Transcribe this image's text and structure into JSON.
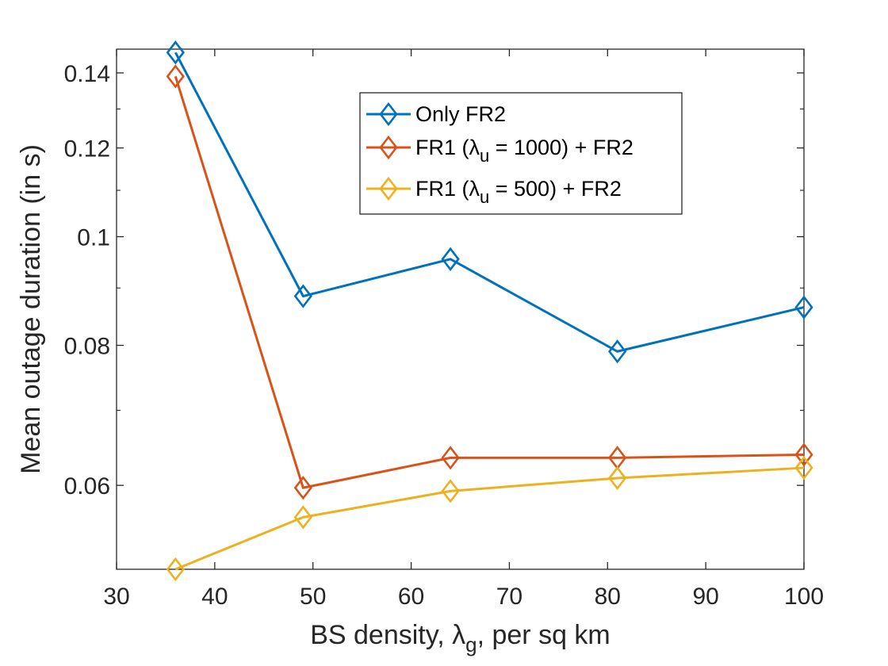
{
  "chart_data": {
    "type": "line",
    "xlabel": "",
    "ylabel": "Mean outage duration (in s)",
    "xlabel_parts": {
      "prefix": "BS density, ",
      "symbol": "λ",
      "subscript": "g",
      "suffix": ", per sq km"
    },
    "xlim": [
      30,
      100
    ],
    "ylim": [
      0.0505,
      0.147
    ],
    "yscale": "log",
    "grid": false,
    "legend_placement": "top-center",
    "x_ticks": [
      30,
      40,
      50,
      60,
      70,
      80,
      90,
      100
    ],
    "y_ticks": [
      0.06,
      0.08,
      0.1,
      0.12,
      0.14
    ],
    "x_tick_labels": [
      "30",
      "40",
      "50",
      "60",
      "70",
      "80",
      "90",
      "100"
    ],
    "y_tick_labels": [
      "0.06",
      "0.08",
      "0.1",
      "0.12",
      "0.14"
    ],
    "x": [
      36,
      49,
      64,
      81,
      100
    ],
    "series": [
      {
        "name": "Only FR2",
        "legend": {
          "prefix": "Only FR2",
          "symbol": "",
          "subscript": "",
          "suffix": ""
        },
        "color": "#0072BD",
        "marker": "diamond",
        "values": [
          0.146,
          0.0885,
          0.0955,
          0.079,
          0.0865
        ]
      },
      {
        "name": "FR1 (λu = 1000) + FR2",
        "legend": {
          "prefix": "FR1 (",
          "symbol": "λ",
          "subscript": "u",
          "suffix": " = 1000) + FR2"
        },
        "color": "#D95319",
        "marker": "diamond",
        "values": [
          0.139,
          0.0597,
          0.0635,
          0.0635,
          0.0639
        ]
      },
      {
        "name": "FR1 (λu = 500) + FR2",
        "legend": {
          "prefix": "FR1 (",
          "symbol": "λ",
          "subscript": "u",
          "suffix": " = 500) + FR2"
        },
        "color": "#EDB120",
        "marker": "diamond",
        "values": [
          0.0505,
          0.0562,
          0.0593,
          0.0609,
          0.0622
        ]
      }
    ]
  }
}
